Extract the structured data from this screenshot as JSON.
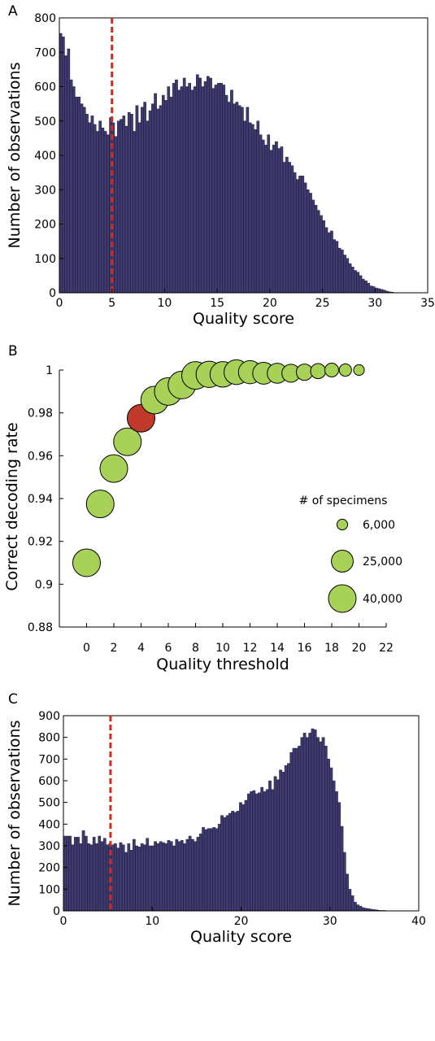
{
  "colors": {
    "bar": "#3e3a6e",
    "bubble": "#a8d157",
    "highlight": "#c0392b",
    "marker": "#d42a20"
  },
  "chart_data": [
    {
      "panel": "A",
      "type": "bar",
      "xlabel": "Quality score",
      "ylabel": "Number of observations",
      "xlim": [
        0,
        35
      ],
      "ylim": [
        0,
        800
      ],
      "xticks": [
        0,
        5,
        10,
        15,
        20,
        25,
        30,
        35
      ],
      "yticks": [
        0,
        100,
        200,
        300,
        400,
        500,
        600,
        700,
        800
      ],
      "bin_width": 0.25,
      "marker_x": 5,
      "values": [
        755,
        745,
        690,
        710,
        620,
        600,
        570,
        570,
        550,
        540,
        520,
        495,
        515,
        490,
        470,
        500,
        480,
        470,
        460,
        510,
        495,
        455,
        500,
        505,
        515,
        485,
        525,
        520,
        470,
        545,
        495,
        540,
        555,
        500,
        530,
        550,
        580,
        535,
        545,
        575,
        560,
        600,
        570,
        610,
        620,
        590,
        600,
        625,
        600,
        610,
        590,
        600,
        635,
        625,
        600,
        615,
        630,
        625,
        595,
        605,
        610,
        610,
        605,
        575,
        555,
        590,
        550,
        555,
        545,
        540,
        500,
        540,
        495,
        490,
        475,
        500,
        460,
        445,
        430,
        460,
        415,
        430,
        440,
        420,
        425,
        380,
        395,
        380,
        370,
        350,
        330,
        340,
        340,
        320,
        300,
        290,
        270,
        255,
        240,
        225,
        210,
        190,
        175,
        180,
        155,
        150,
        130,
        125,
        110,
        100,
        85,
        75,
        65,
        60,
        50,
        40,
        35,
        28,
        20,
        18,
        14,
        12,
        10,
        8,
        5,
        3,
        2,
        0
      ],
      "grid": false
    },
    {
      "panel": "B",
      "type": "scatter",
      "xlabel": "Quality threshold",
      "ylabel": "Correct decoding rate",
      "xlim": [
        -2,
        22
      ],
      "ylim": [
        0.88,
        1.0
      ],
      "xticks": [
        0,
        2,
        4,
        6,
        8,
        10,
        12,
        14,
        16,
        18,
        20,
        22
      ],
      "yticks": [
        0.88,
        0.9,
        0.92,
        0.94,
        0.96,
        0.98,
        1
      ],
      "ytick_labels": [
        "0.88",
        "0.9",
        "0.92",
        "0.94",
        "0.96",
        "0.98",
        "1"
      ],
      "highlight_x": 4,
      "points": [
        {
          "x": 0,
          "y": 0.91,
          "n": 40000
        },
        {
          "x": 1,
          "y": 0.9375,
          "n": 40000
        },
        {
          "x": 2,
          "y": 0.954,
          "n": 40000
        },
        {
          "x": 3,
          "y": 0.9665,
          "n": 40000
        },
        {
          "x": 4,
          "y": 0.9775,
          "n": 40000
        },
        {
          "x": 5,
          "y": 0.986,
          "n": 40000
        },
        {
          "x": 6,
          "y": 0.99,
          "n": 40000
        },
        {
          "x": 7,
          "y": 0.993,
          "n": 40000
        },
        {
          "x": 8,
          "y": 0.9975,
          "n": 40000
        },
        {
          "x": 9,
          "y": 0.998,
          "n": 36000
        },
        {
          "x": 10,
          "y": 0.998,
          "n": 34000
        },
        {
          "x": 11,
          "y": 0.999,
          "n": 32000
        },
        {
          "x": 12,
          "y": 0.999,
          "n": 28000
        },
        {
          "x": 13,
          "y": 0.9985,
          "n": 25000
        },
        {
          "x": 14,
          "y": 0.9985,
          "n": 21000
        },
        {
          "x": 15,
          "y": 0.9985,
          "n": 17000
        },
        {
          "x": 16,
          "y": 0.999,
          "n": 14000
        },
        {
          "x": 17,
          "y": 0.9995,
          "n": 12000
        },
        {
          "x": 18,
          "y": 1.0,
          "n": 10000
        },
        {
          "x": 19,
          "y": 1.0,
          "n": 8000
        },
        {
          "x": 20,
          "y": 1.0,
          "n": 6000
        }
      ],
      "legend": {
        "title": "# of specimens",
        "entries": [
          {
            "label": "6,000",
            "n": 6000
          },
          {
            "label": "25,000",
            "n": 25000
          },
          {
            "label": "40,000",
            "n": 40000
          }
        ]
      },
      "grid": false
    },
    {
      "panel": "C",
      "type": "bar",
      "xlabel": "Quality score",
      "ylabel": "Number of observations",
      "xlim": [
        0,
        40
      ],
      "ylim": [
        0,
        900
      ],
      "xticks": [
        0,
        10,
        20,
        30,
        40
      ],
      "yticks": [
        0,
        100,
        200,
        300,
        400,
        500,
        600,
        700,
        800,
        900
      ],
      "bin_width": 0.3,
      "marker_x": 5.3,
      "values": [
        345,
        345,
        345,
        305,
        340,
        340,
        310,
        370,
        345,
        310,
        305,
        340,
        310,
        345,
        320,
        335,
        305,
        310,
        305,
        310,
        290,
        315,
        305,
        270,
        310,
        280,
        330,
        300,
        295,
        310,
        305,
        335,
        300,
        300,
        320,
        310,
        320,
        315,
        310,
        325,
        320,
        300,
        330,
        320,
        325,
        310,
        330,
        345,
        330,
        320,
        340,
        355,
        385,
        375,
        380,
        380,
        385,
        380,
        400,
        440,
        430,
        440,
        450,
        460,
        455,
        460,
        500,
        490,
        510,
        540,
        550,
        555,
        540,
        545,
        570,
        550,
        560,
        600,
        560,
        620,
        605,
        650,
        640,
        670,
        680,
        730,
        750,
        750,
        760,
        800,
        820,
        800,
        820,
        840,
        835,
        800,
        780,
        800,
        760,
        700,
        660,
        600,
        550,
        500,
        390,
        270,
        170,
        100,
        70,
        40,
        28,
        22,
        15,
        12,
        10,
        8,
        6,
        5,
        3,
        2,
        2,
        1,
        1,
        0,
        0,
        0,
        0,
        0,
        0,
        0,
        0,
        0,
        0
      ],
      "grid": false
    }
  ]
}
